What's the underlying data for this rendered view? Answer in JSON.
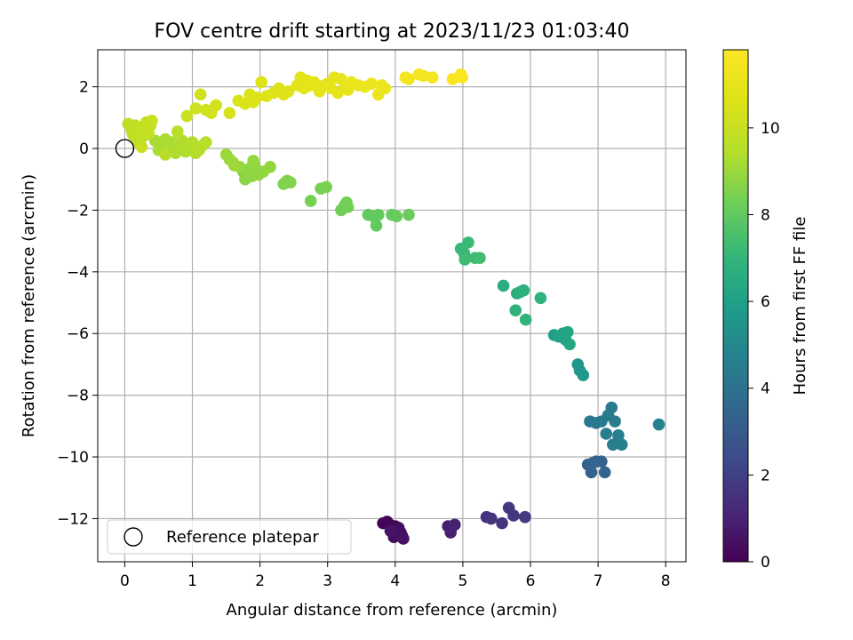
{
  "chart_data": {
    "type": "scatter",
    "title": "FOV centre drift starting at 2023/11/23 01:03:40",
    "xlabel": "Angular distance from reference (arcmin)",
    "ylabel": "Rotation from reference (arcmin)",
    "xlim": [
      -0.4,
      8.3
    ],
    "ylim": [
      -13.4,
      3.2
    ],
    "xticks": [
      0,
      1,
      2,
      3,
      4,
      5,
      6,
      7,
      8
    ],
    "yticks": [
      -12,
      -10,
      -8,
      -6,
      -4,
      -2,
      0,
      2
    ],
    "grid": true,
    "colorbar": {
      "label": "Hours from first FF file",
      "colormap": "viridis",
      "range": [
        0,
        11.8
      ],
      "ticks": [
        0,
        2,
        4,
        6,
        8,
        10
      ]
    },
    "legend": {
      "placement": "lower-left",
      "entries": [
        "Reference platepar"
      ]
    },
    "reference_point": {
      "x": 0,
      "y": 0,
      "label": "Reference platepar"
    },
    "points": [
      {
        "x": 3.82,
        "y": -12.15,
        "t": 0.05
      },
      {
        "x": 3.88,
        "y": -12.1,
        "t": 0.1
      },
      {
        "x": 3.92,
        "y": -12.2,
        "t": 0.15
      },
      {
        "x": 3.95,
        "y": -12.35,
        "t": 0.2
      },
      {
        "x": 4.0,
        "y": -12.25,
        "t": 0.25
      },
      {
        "x": 4.05,
        "y": -12.3,
        "t": 0.3
      },
      {
        "x": 4.08,
        "y": -12.45,
        "t": 0.35
      },
      {
        "x": 3.98,
        "y": -12.6,
        "t": 0.4
      },
      {
        "x": 4.1,
        "y": -12.55,
        "t": 0.45
      },
      {
        "x": 4.12,
        "y": -12.65,
        "t": 0.5
      },
      {
        "x": 3.93,
        "y": -12.4,
        "t": 0.55
      },
      {
        "x": 4.78,
        "y": -12.25,
        "t": 0.9
      },
      {
        "x": 4.82,
        "y": -12.45,
        "t": 0.95
      },
      {
        "x": 4.88,
        "y": -12.2,
        "t": 1.0
      },
      {
        "x": 5.35,
        "y": -11.95,
        "t": 1.5
      },
      {
        "x": 5.42,
        "y": -12.0,
        "t": 1.55
      },
      {
        "x": 5.58,
        "y": -12.15,
        "t": 1.6
      },
      {
        "x": 5.68,
        "y": -11.65,
        "t": 1.7
      },
      {
        "x": 5.75,
        "y": -11.9,
        "t": 1.75
      },
      {
        "x": 5.92,
        "y": -11.95,
        "t": 1.8
      },
      {
        "x": 6.85,
        "y": -10.25,
        "t": 3.2
      },
      {
        "x": 6.9,
        "y": -10.5,
        "t": 3.25
      },
      {
        "x": 6.97,
        "y": -10.15,
        "t": 3.3
      },
      {
        "x": 7.05,
        "y": -10.15,
        "t": 3.35
      },
      {
        "x": 7.1,
        "y": -10.5,
        "t": 3.4
      },
      {
        "x": 6.92,
        "y": -10.2,
        "t": 3.45
      },
      {
        "x": 6.88,
        "y": -8.85,
        "t": 4.2
      },
      {
        "x": 6.97,
        "y": -8.9,
        "t": 4.25
      },
      {
        "x": 7.05,
        "y": -8.85,
        "t": 4.3
      },
      {
        "x": 7.15,
        "y": -8.65,
        "t": 4.35
      },
      {
        "x": 7.2,
        "y": -8.4,
        "t": 4.4
      },
      {
        "x": 7.25,
        "y": -8.85,
        "t": 4.45
      },
      {
        "x": 7.12,
        "y": -9.25,
        "t": 4.5
      },
      {
        "x": 7.22,
        "y": -9.6,
        "t": 4.55
      },
      {
        "x": 7.3,
        "y": -9.3,
        "t": 4.6
      },
      {
        "x": 7.35,
        "y": -9.6,
        "t": 4.65
      },
      {
        "x": 7.9,
        "y": -8.95,
        "t": 4.7
      },
      {
        "x": 6.7,
        "y": -7.0,
        "t": 5.6
      },
      {
        "x": 6.73,
        "y": -7.2,
        "t": 5.65
      },
      {
        "x": 6.78,
        "y": -7.35,
        "t": 5.7
      },
      {
        "x": 6.35,
        "y": -6.05,
        "t": 6.0
      },
      {
        "x": 6.42,
        "y": -6.1,
        "t": 6.05
      },
      {
        "x": 6.48,
        "y": -6.0,
        "t": 6.1
      },
      {
        "x": 6.52,
        "y": -6.2,
        "t": 6.15
      },
      {
        "x": 6.55,
        "y": -5.95,
        "t": 6.2
      },
      {
        "x": 6.58,
        "y": -6.35,
        "t": 6.25
      },
      {
        "x": 5.6,
        "y": -4.45,
        "t": 6.6
      },
      {
        "x": 5.8,
        "y": -4.7,
        "t": 6.65
      },
      {
        "x": 5.85,
        "y": -4.65,
        "t": 6.7
      },
      {
        "x": 5.9,
        "y": -4.6,
        "t": 6.75
      },
      {
        "x": 6.15,
        "y": -4.85,
        "t": 6.8
      },
      {
        "x": 5.78,
        "y": -5.25,
        "t": 6.85
      },
      {
        "x": 5.93,
        "y": -5.55,
        "t": 6.9
      },
      {
        "x": 4.97,
        "y": -3.25,
        "t": 7.1
      },
      {
        "x": 5.02,
        "y": -3.4,
        "t": 7.15
      },
      {
        "x": 5.08,
        "y": -3.05,
        "t": 7.2
      },
      {
        "x": 5.03,
        "y": -3.6,
        "t": 7.25
      },
      {
        "x": 5.18,
        "y": -3.55,
        "t": 7.3
      },
      {
        "x": 5.25,
        "y": -3.55,
        "t": 7.35
      },
      {
        "x": 3.6,
        "y": -2.15,
        "t": 8.0
      },
      {
        "x": 3.68,
        "y": -2.2,
        "t": 8.02
      },
      {
        "x": 3.75,
        "y": -2.15,
        "t": 8.05
      },
      {
        "x": 3.72,
        "y": -2.5,
        "t": 8.07
      },
      {
        "x": 3.95,
        "y": -2.15,
        "t": 8.1
      },
      {
        "x": 4.02,
        "y": -2.2,
        "t": 8.12
      },
      {
        "x": 4.2,
        "y": -2.15,
        "t": 8.15
      },
      {
        "x": 3.2,
        "y": -2.0,
        "t": 8.25
      },
      {
        "x": 3.25,
        "y": -1.85,
        "t": 8.27
      },
      {
        "x": 3.28,
        "y": -1.75,
        "t": 8.3
      },
      {
        "x": 3.3,
        "y": -1.9,
        "t": 8.32
      },
      {
        "x": 2.75,
        "y": -1.7,
        "t": 8.4
      },
      {
        "x": 2.9,
        "y": -1.3,
        "t": 8.42
      },
      {
        "x": 2.98,
        "y": -1.25,
        "t": 8.45
      },
      {
        "x": 2.35,
        "y": -1.15,
        "t": 8.55
      },
      {
        "x": 2.4,
        "y": -1.05,
        "t": 8.57
      },
      {
        "x": 2.45,
        "y": -1.1,
        "t": 8.6
      },
      {
        "x": 1.75,
        "y": -0.75,
        "t": 8.7
      },
      {
        "x": 1.78,
        "y": -1.0,
        "t": 8.72
      },
      {
        "x": 1.82,
        "y": -0.8,
        "t": 8.74
      },
      {
        "x": 1.85,
        "y": -0.65,
        "t": 8.76
      },
      {
        "x": 1.88,
        "y": -0.9,
        "t": 8.78
      },
      {
        "x": 1.92,
        "y": -0.55,
        "t": 8.8
      },
      {
        "x": 1.95,
        "y": -0.7,
        "t": 8.82
      },
      {
        "x": 1.98,
        "y": -0.85,
        "t": 8.84
      },
      {
        "x": 2.05,
        "y": -0.75,
        "t": 8.86
      },
      {
        "x": 2.15,
        "y": -0.6,
        "t": 8.88
      },
      {
        "x": 1.9,
        "y": -0.4,
        "t": 8.9
      },
      {
        "x": 1.7,
        "y": -0.6,
        "t": 8.92
      },
      {
        "x": 1.5,
        "y": -0.2,
        "t": 9.0
      },
      {
        "x": 1.55,
        "y": -0.35,
        "t": 9.02
      },
      {
        "x": 1.6,
        "y": -0.45,
        "t": 9.04
      },
      {
        "x": 1.62,
        "y": -0.55,
        "t": 9.06
      },
      {
        "x": 0.45,
        "y": 0.25,
        "t": 9.2
      },
      {
        "x": 0.5,
        "y": -0.05,
        "t": 9.22
      },
      {
        "x": 0.55,
        "y": 0.15,
        "t": 9.24
      },
      {
        "x": 0.6,
        "y": 0.3,
        "t": 9.26
      },
      {
        "x": 0.65,
        "y": 0.05,
        "t": 9.28
      },
      {
        "x": 0.7,
        "y": 0.2,
        "t": 9.3
      },
      {
        "x": 0.75,
        "y": -0.15,
        "t": 9.32
      },
      {
        "x": 0.8,
        "y": 0.1,
        "t": 9.34
      },
      {
        "x": 0.85,
        "y": 0.25,
        "t": 9.36
      },
      {
        "x": 0.9,
        "y": -0.1,
        "t": 9.38
      },
      {
        "x": 0.95,
        "y": 0.05,
        "t": 9.4
      },
      {
        "x": 1.0,
        "y": 0.2,
        "t": 9.42
      },
      {
        "x": 1.05,
        "y": -0.15,
        "t": 9.44
      },
      {
        "x": 1.1,
        "y": -0.05,
        "t": 9.46
      },
      {
        "x": 1.15,
        "y": 0.1,
        "t": 9.48
      },
      {
        "x": 1.2,
        "y": 0.2,
        "t": 9.5
      },
      {
        "x": 0.78,
        "y": 0.55,
        "t": 9.52
      },
      {
        "x": 0.6,
        "y": -0.2,
        "t": 9.54
      },
      {
        "x": 0.05,
        "y": 0.8,
        "t": 9.7
      },
      {
        "x": 0.1,
        "y": 0.6,
        "t": 9.72
      },
      {
        "x": 0.12,
        "y": 0.45,
        "t": 9.74
      },
      {
        "x": 0.15,
        "y": 0.75,
        "t": 9.76
      },
      {
        "x": 0.18,
        "y": 0.3,
        "t": 9.78
      },
      {
        "x": 0.2,
        "y": 0.55,
        "t": 9.8
      },
      {
        "x": 0.22,
        "y": 0.15,
        "t": 9.82
      },
      {
        "x": 0.25,
        "y": 0.7,
        "t": 9.84
      },
      {
        "x": 0.28,
        "y": 0.4,
        "t": 9.86
      },
      {
        "x": 0.3,
        "y": 0.6,
        "t": 9.88
      },
      {
        "x": 0.32,
        "y": 0.85,
        "t": 9.9
      },
      {
        "x": 0.35,
        "y": 0.5,
        "t": 9.92
      },
      {
        "x": 0.38,
        "y": 0.75,
        "t": 9.94
      },
      {
        "x": 0.4,
        "y": 0.9,
        "t": 9.96
      },
      {
        "x": 0.25,
        "y": 0.05,
        "t": 9.98
      },
      {
        "x": 0.92,
        "y": 1.05,
        "t": 10.1
      },
      {
        "x": 1.05,
        "y": 1.3,
        "t": 10.15
      },
      {
        "x": 1.12,
        "y": 1.75,
        "t": 10.2
      },
      {
        "x": 1.2,
        "y": 1.25,
        "t": 10.25
      },
      {
        "x": 1.28,
        "y": 1.15,
        "t": 10.3
      },
      {
        "x": 1.35,
        "y": 1.4,
        "t": 10.35
      },
      {
        "x": 1.55,
        "y": 1.15,
        "t": 10.4
      },
      {
        "x": 1.68,
        "y": 1.55,
        "t": 10.5
      },
      {
        "x": 1.78,
        "y": 1.45,
        "t": 10.52
      },
      {
        "x": 1.85,
        "y": 1.75,
        "t": 10.54
      },
      {
        "x": 1.9,
        "y": 1.5,
        "t": 10.56
      },
      {
        "x": 1.95,
        "y": 1.65,
        "t": 10.58
      },
      {
        "x": 2.02,
        "y": 2.15,
        "t": 10.6
      },
      {
        "x": 2.1,
        "y": 1.7,
        "t": 10.62
      },
      {
        "x": 2.2,
        "y": 1.8,
        "t": 10.64
      },
      {
        "x": 2.28,
        "y": 1.95,
        "t": 10.66
      },
      {
        "x": 2.35,
        "y": 1.75,
        "t": 10.68
      },
      {
        "x": 2.42,
        "y": 1.85,
        "t": 10.7
      },
      {
        "x": 2.55,
        "y": 2.05,
        "t": 10.8
      },
      {
        "x": 2.6,
        "y": 2.3,
        "t": 10.82
      },
      {
        "x": 2.65,
        "y": 1.95,
        "t": 10.84
      },
      {
        "x": 2.7,
        "y": 2.2,
        "t": 10.86
      },
      {
        "x": 2.75,
        "y": 2.05,
        "t": 10.88
      },
      {
        "x": 2.8,
        "y": 2.15,
        "t": 10.9
      },
      {
        "x": 2.88,
        "y": 1.85,
        "t": 10.92
      },
      {
        "x": 2.95,
        "y": 2.05,
        "t": 10.94
      },
      {
        "x": 3.0,
        "y": 2.1,
        "t": 10.96
      },
      {
        "x": 3.05,
        "y": 1.95,
        "t": 10.98
      },
      {
        "x": 3.1,
        "y": 2.3,
        "t": 11.0
      },
      {
        "x": 3.15,
        "y": 1.8,
        "t": 11.02
      },
      {
        "x": 3.2,
        "y": 2.25,
        "t": 11.04
      },
      {
        "x": 3.25,
        "y": 2.1,
        "t": 11.06
      },
      {
        "x": 3.3,
        "y": 1.9,
        "t": 11.08
      },
      {
        "x": 3.35,
        "y": 2.15,
        "t": 11.1
      },
      {
        "x": 3.45,
        "y": 2.05,
        "t": 11.12
      },
      {
        "x": 3.55,
        "y": 2.0,
        "t": 11.14
      },
      {
        "x": 3.65,
        "y": 2.1,
        "t": 11.16
      },
      {
        "x": 3.75,
        "y": 1.75,
        "t": 11.18
      },
      {
        "x": 3.8,
        "y": 2.05,
        "t": 11.2
      },
      {
        "x": 3.85,
        "y": 1.95,
        "t": 11.22
      },
      {
        "x": 4.15,
        "y": 2.3,
        "t": 11.4
      },
      {
        "x": 4.2,
        "y": 2.25,
        "t": 11.42
      },
      {
        "x": 4.35,
        "y": 2.4,
        "t": 11.45
      },
      {
        "x": 4.42,
        "y": 2.35,
        "t": 11.48
      },
      {
        "x": 4.55,
        "y": 2.3,
        "t": 11.5
      },
      {
        "x": 4.85,
        "y": 2.25,
        "t": 11.6
      },
      {
        "x": 4.97,
        "y": 2.4,
        "t": 11.65
      },
      {
        "x": 4.99,
        "y": 2.3,
        "t": 11.7
      }
    ]
  }
}
